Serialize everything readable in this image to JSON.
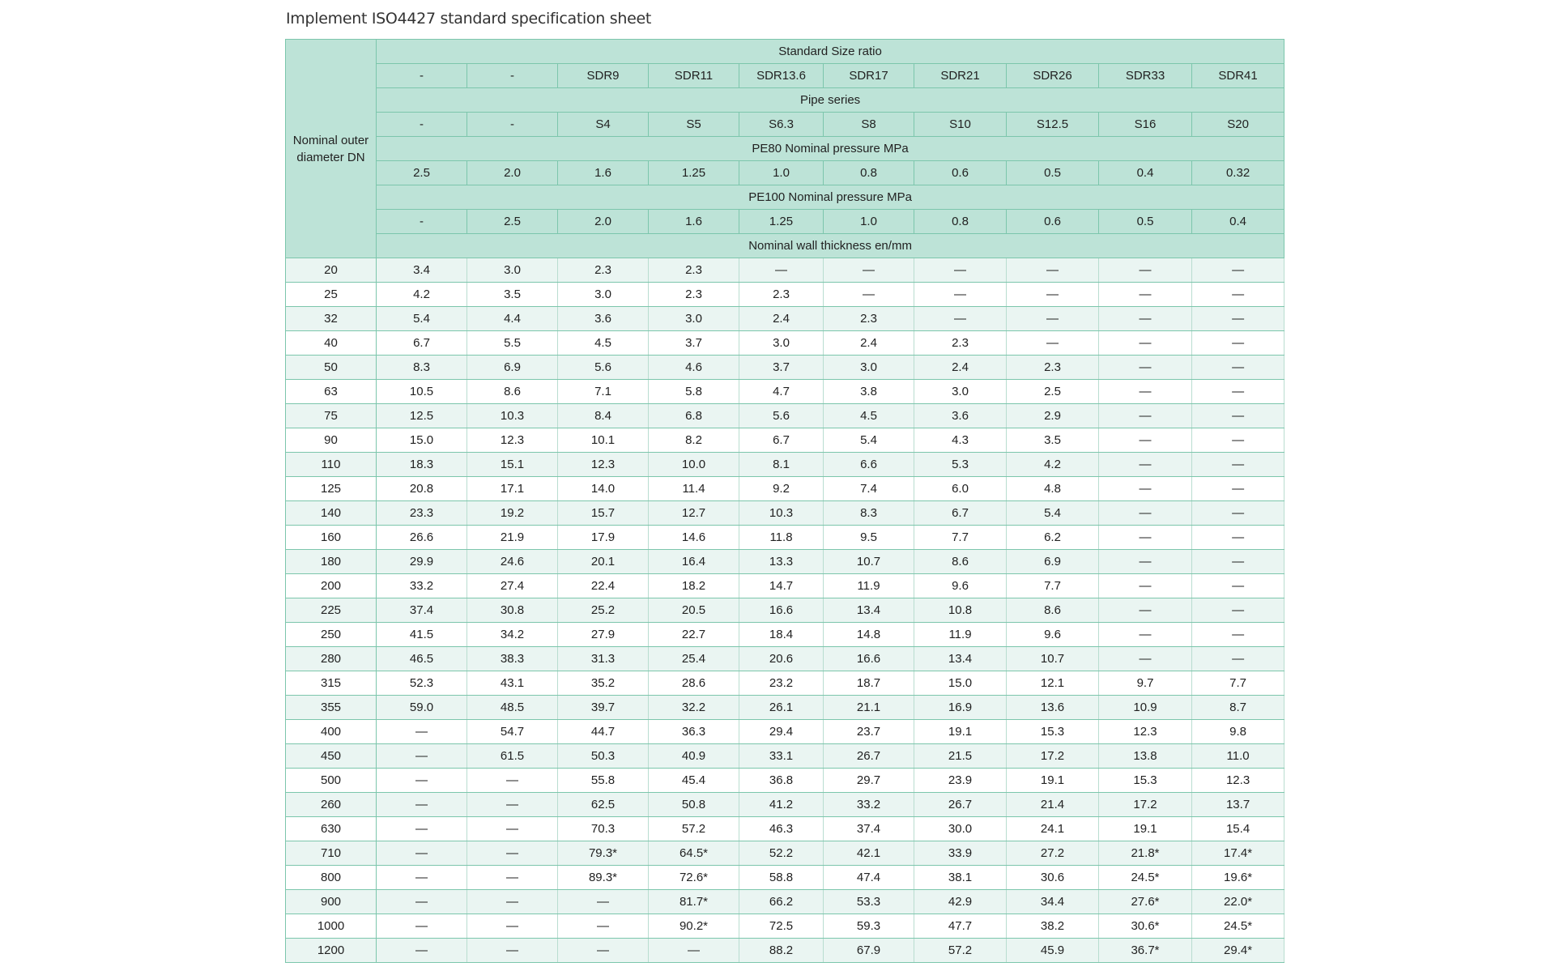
{
  "title": "Implement ISO4427 standard specification sheet",
  "colors": {
    "header_bg": "#bde3d7",
    "border": "#7cc6ac",
    "row_alt_bg": "#eaf5f2"
  },
  "table": {
    "row_header_label": "Nominal outer diameter DN",
    "standard_size_ratio_label": "Standard Size ratio",
    "sdr": [
      "-",
      "-",
      "SDR9",
      "SDR11",
      "SDR13.6",
      "SDR17",
      "SDR21",
      "SDR26",
      "SDR33",
      "SDR41"
    ],
    "pipe_series_label": "Pipe series",
    "series": [
      "-",
      "-",
      "S4",
      "S5",
      "S6.3",
      "S8",
      "S10",
      "S12.5",
      "S16",
      "S20"
    ],
    "pe80_label": "PE80 Nominal pressure MPa",
    "pe80": [
      "2.5",
      "2.0",
      "1.6",
      "1.25",
      "1.0",
      "0.8",
      "0.6",
      "0.5",
      "0.4",
      "0.32"
    ],
    "pe100_label": "PE100 Nominal pressure MPa",
    "pe100": [
      "-",
      "2.5",
      "2.0",
      "1.6",
      "1.25",
      "1.0",
      "0.8",
      "0.6",
      "0.5",
      "0.4"
    ],
    "wall_label": "Nominal wall thickness en/mm",
    "rows": [
      [
        "20",
        "3.4",
        "3.0",
        "2.3",
        "2.3",
        "—",
        "—",
        "—",
        "—",
        "—",
        "—"
      ],
      [
        "25",
        "4.2",
        "3.5",
        "3.0",
        "2.3",
        "2.3",
        "—",
        "—",
        "—",
        "—",
        "—"
      ],
      [
        "32",
        "5.4",
        "4.4",
        "3.6",
        "3.0",
        "2.4",
        "2.3",
        "—",
        "—",
        "—",
        "—"
      ],
      [
        "40",
        "6.7",
        "5.5",
        "4.5",
        "3.7",
        "3.0",
        "2.4",
        "2.3",
        "—",
        "—",
        "—"
      ],
      [
        "50",
        "8.3",
        "6.9",
        "5.6",
        "4.6",
        "3.7",
        "3.0",
        "2.4",
        "2.3",
        "—",
        "—"
      ],
      [
        "63",
        "10.5",
        "8.6",
        "7.1",
        "5.8",
        "4.7",
        "3.8",
        "3.0",
        "2.5",
        "—",
        "—"
      ],
      [
        "75",
        "12.5",
        "10.3",
        "8.4",
        "6.8",
        "5.6",
        "4.5",
        "3.6",
        "2.9",
        "—",
        "—"
      ],
      [
        "90",
        "15.0",
        "12.3",
        "10.1",
        "8.2",
        "6.7",
        "5.4",
        "4.3",
        "3.5",
        "—",
        "—"
      ],
      [
        "110",
        "18.3",
        "15.1",
        "12.3",
        "10.0",
        "8.1",
        "6.6",
        "5.3",
        "4.2",
        "—",
        "—"
      ],
      [
        "125",
        "20.8",
        "17.1",
        "14.0",
        "11.4",
        "9.2",
        "7.4",
        "6.0",
        "4.8",
        "—",
        "—"
      ],
      [
        "140",
        "23.3",
        "19.2",
        "15.7",
        "12.7",
        "10.3",
        "8.3",
        "6.7",
        "5.4",
        "—",
        "—"
      ],
      [
        "160",
        "26.6",
        "21.9",
        "17.9",
        "14.6",
        "11.8",
        "9.5",
        "7.7",
        "6.2",
        "—",
        "—"
      ],
      [
        "180",
        "29.9",
        "24.6",
        "20.1",
        "16.4",
        "13.3",
        "10.7",
        "8.6",
        "6.9",
        "—",
        "—"
      ],
      [
        "200",
        "33.2",
        "27.4",
        "22.4",
        "18.2",
        "14.7",
        "11.9",
        "9.6",
        "7.7",
        "—",
        "—"
      ],
      [
        "225",
        "37.4",
        "30.8",
        "25.2",
        "20.5",
        "16.6",
        "13.4",
        "10.8",
        "8.6",
        "—",
        "—"
      ],
      [
        "250",
        "41.5",
        "34.2",
        "27.9",
        "22.7",
        "18.4",
        "14.8",
        "11.9",
        "9.6",
        "—",
        "—"
      ],
      [
        "280",
        "46.5",
        "38.3",
        "31.3",
        "25.4",
        "20.6",
        "16.6",
        "13.4",
        "10.7",
        "—",
        "—"
      ],
      [
        "315",
        "52.3",
        "43.1",
        "35.2",
        "28.6",
        "23.2",
        "18.7",
        "15.0",
        "12.1",
        "9.7",
        "7.7"
      ],
      [
        "355",
        "59.0",
        "48.5",
        "39.7",
        "32.2",
        "26.1",
        "21.1",
        "16.9",
        "13.6",
        "10.9",
        "8.7"
      ],
      [
        "400",
        "—",
        "54.7",
        "44.7",
        "36.3",
        "29.4",
        "23.7",
        "19.1",
        "15.3",
        "12.3",
        "9.8"
      ],
      [
        "450",
        "—",
        "61.5",
        "50.3",
        "40.9",
        "33.1",
        "26.7",
        "21.5",
        "17.2",
        "13.8",
        "11.0"
      ],
      [
        "500",
        "—",
        "—",
        "55.8",
        "45.4",
        "36.8",
        "29.7",
        "23.9",
        "19.1",
        "15.3",
        "12.3"
      ],
      [
        "260",
        "—",
        "—",
        "62.5",
        "50.8",
        "41.2",
        "33.2",
        "26.7",
        "21.4",
        "17.2",
        "13.7"
      ],
      [
        "630",
        "—",
        "—",
        "70.3",
        "57.2",
        "46.3",
        "37.4",
        "30.0",
        "24.1",
        "19.1",
        "15.4"
      ],
      [
        "710",
        "—",
        "—",
        "79.3*",
        "64.5*",
        "52.2",
        "42.1",
        "33.9",
        "27.2",
        "21.8*",
        "17.4*"
      ],
      [
        "800",
        "—",
        "—",
        "89.3*",
        "72.6*",
        "58.8",
        "47.4",
        "38.1",
        "30.6",
        "24.5*",
        "19.6*"
      ],
      [
        "900",
        "—",
        "—",
        "—",
        "81.7*",
        "66.2",
        "53.3",
        "42.9",
        "34.4",
        "27.6*",
        "22.0*"
      ],
      [
        "1000",
        "—",
        "—",
        "—",
        "90.2*",
        "72.5",
        "59.3",
        "47.7",
        "38.2",
        "30.6*",
        "24.5*"
      ],
      [
        "1200",
        "—",
        "—",
        "—",
        "—",
        "88.2",
        "67.9",
        "57.2",
        "45.9",
        "36.7*",
        "29.4*"
      ]
    ]
  }
}
